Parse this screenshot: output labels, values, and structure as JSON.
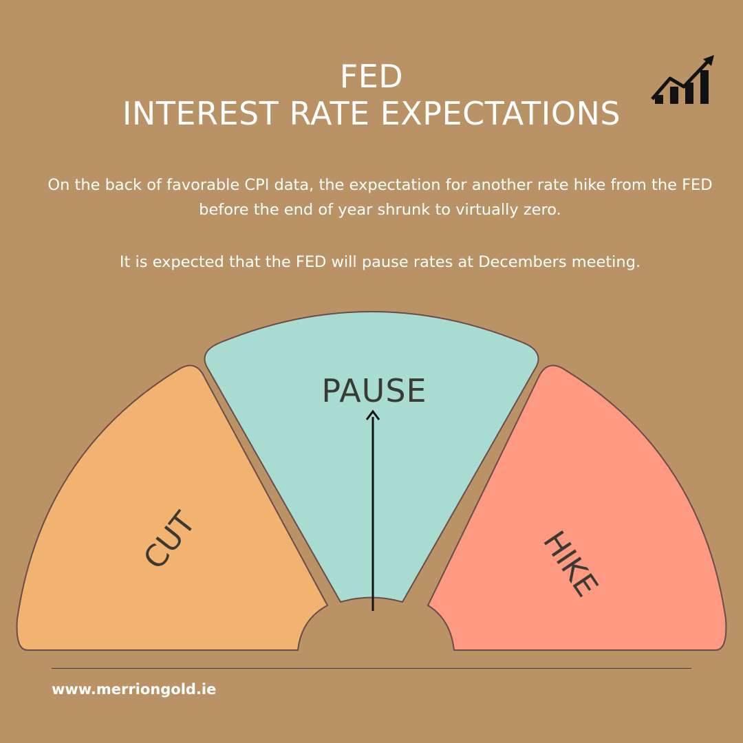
{
  "header": {
    "title_line1": "FED",
    "title_line2": "INTEREST RATE EXPECTATIONS",
    "icon": "rising-bar-chart-icon"
  },
  "body": {
    "paragraph1": "On the back of favorable CPI data, the expectation for another rate hike from the FED before the end of year shrunk to virtually zero.",
    "paragraph2": "It is expected that the FED will pause rates at Decembers meeting."
  },
  "gauge": {
    "segments": [
      {
        "label": "CUT",
        "color": "#f2b371"
      },
      {
        "label": "PAUSE",
        "color": "#a8dcd1"
      },
      {
        "label": "HIKE",
        "color": "#fe9a81"
      }
    ],
    "pointer_at": "PAUSE",
    "outline_color": "#6a4a4a"
  },
  "footer": {
    "website": "www.merriongold.ie"
  }
}
